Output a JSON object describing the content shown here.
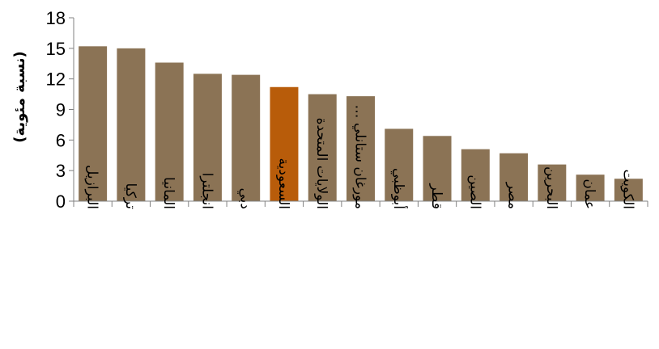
{
  "chart_data": {
    "type": "bar",
    "ylabel": "(نسبة مئوية)",
    "ylim": [
      0,
      18
    ],
    "yticks": [
      0,
      3,
      6,
      9,
      12,
      15,
      18
    ],
    "grid": false,
    "legend": "none",
    "categories": [
      "البرازيل",
      "تركيا",
      "المانيا",
      "انجلترا",
      "دبي",
      "السعودية",
      "الولايات المتحدة",
      "مورغان ستانلي …",
      "أبوظبي",
      "قطر",
      "الصين",
      "مصر",
      "البحرين",
      "عمان",
      "الكويت"
    ],
    "values": [
      15.2,
      15.0,
      13.6,
      12.5,
      12.4,
      11.2,
      10.5,
      10.3,
      7.1,
      6.4,
      5.1,
      4.7,
      3.6,
      2.6,
      2.2
    ],
    "highlight_category": "السعودية",
    "colors": {
      "bar": "#8b7355",
      "highlight": "#b85c0a",
      "axis": "#808080"
    }
  }
}
